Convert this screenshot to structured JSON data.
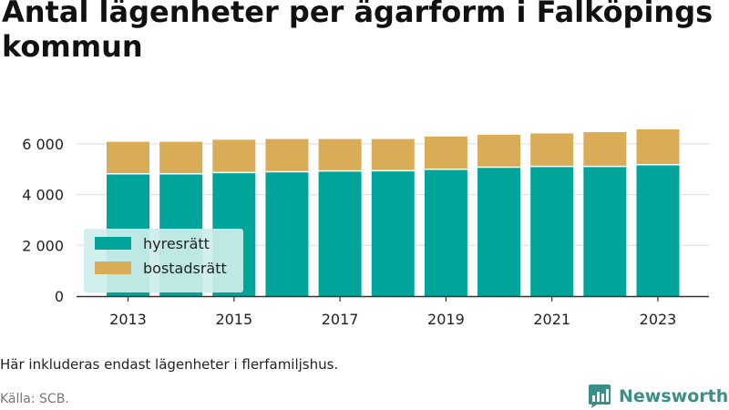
{
  "title": "Antal lägenheter per ägarform i Falköpings kommun",
  "note": "Här inkluderas endast lägenheter i flerfamiljshus.",
  "source": "Källa: SCB.",
  "brand": "Newsworthy",
  "colors": {
    "hyresratt": "#00a49a",
    "bostadsratt": "#d9ac58",
    "grid": "#dddddd",
    "axis": "#333333",
    "legend_bg": "#cdeeea",
    "brand": "#3a8f86"
  },
  "chart_data": {
    "type": "bar",
    "stacked": true,
    "categories": [
      "2013",
      "2014",
      "2015",
      "2016",
      "2017",
      "2018",
      "2019",
      "2020",
      "2021",
      "2022",
      "2023"
    ],
    "xticks": [
      "2013",
      "2015",
      "2017",
      "2019",
      "2021",
      "2023"
    ],
    "yticks": [
      {
        "value": 0,
        "label": "0"
      },
      {
        "value": 2000,
        "label": "2 000"
      },
      {
        "value": 4000,
        "label": "4 000"
      },
      {
        "value": 6000,
        "label": "6 000"
      }
    ],
    "ylim": [
      0,
      7000
    ],
    "series": [
      {
        "name": "hyresrätt",
        "values": [
          4820,
          4820,
          4870,
          4900,
          4930,
          4940,
          5000,
          5080,
          5110,
          5110,
          5180
        ]
      },
      {
        "name": "bostadsrätt",
        "values": [
          1260,
          1260,
          1290,
          1290,
          1260,
          1250,
          1290,
          1280,
          1300,
          1350,
          1390
        ]
      }
    ],
    "legend": "bottom-left",
    "grid": true,
    "xlabel": "",
    "ylabel": ""
  }
}
